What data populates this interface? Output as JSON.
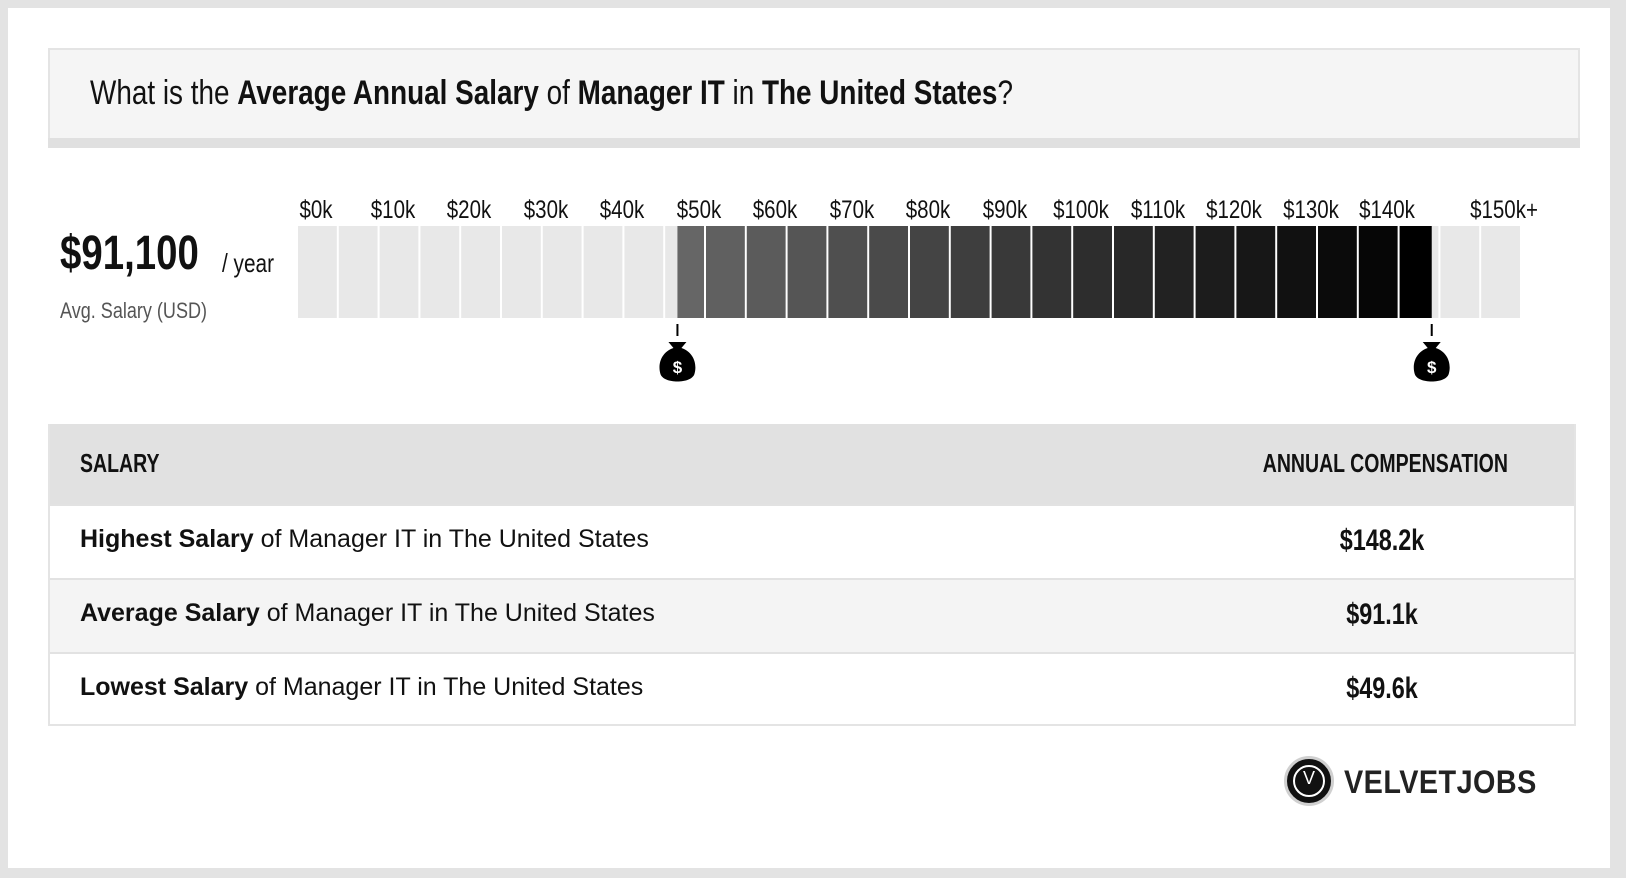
{
  "title": {
    "prefix": "What is the ",
    "metric": "Average Annual Salary",
    "of": " of ",
    "job": "Manager IT",
    "in": " in ",
    "location": "The United States",
    "suffix": "?"
  },
  "summary": {
    "value": "$91,100",
    "unit": "/ year",
    "label": "Avg. Salary (USD)"
  },
  "chart_data": {
    "type": "bar",
    "title": "",
    "x_tick_labels": [
      "$0k",
      "$10k",
      "$20k",
      "$30k",
      "$40k",
      "$50k",
      "$60k",
      "$70k",
      "$80k",
      "$90k",
      "$100k",
      "$110k",
      "$120k",
      "$130k",
      "$140k",
      "$150k+"
    ],
    "xlim": [
      0,
      160000
    ],
    "range_low": 49600,
    "range_high": 148200,
    "average": 91100,
    "segment_count": 30,
    "colors": {
      "empty": "#e8e8e8",
      "range_start": "#666666",
      "range_end": "#000000",
      "marker": "#000000"
    },
    "markers": [
      {
        "name": "low-marker",
        "value": 49600,
        "icon": "money-bag-icon",
        "symbol": "$"
      },
      {
        "name": "high-marker",
        "value": 148200,
        "icon": "money-bag-icon",
        "symbol": "$"
      }
    ]
  },
  "table": {
    "headers": {
      "left": "SALARY",
      "right": "ANNUAL COMPENSATION"
    },
    "rows": [
      {
        "bold": "Highest Salary",
        "rest": " of Manager IT in The United States",
        "value": "$148.2k"
      },
      {
        "bold": "Average Salary",
        "rest": " of Manager IT in The United States",
        "value": "$91.1k"
      },
      {
        "bold": "Lowest Salary",
        "rest": " of Manager IT in The United States",
        "value": "$49.6k"
      }
    ]
  },
  "brand": {
    "logo_letter": "V",
    "name": "VELVETJOBS"
  }
}
